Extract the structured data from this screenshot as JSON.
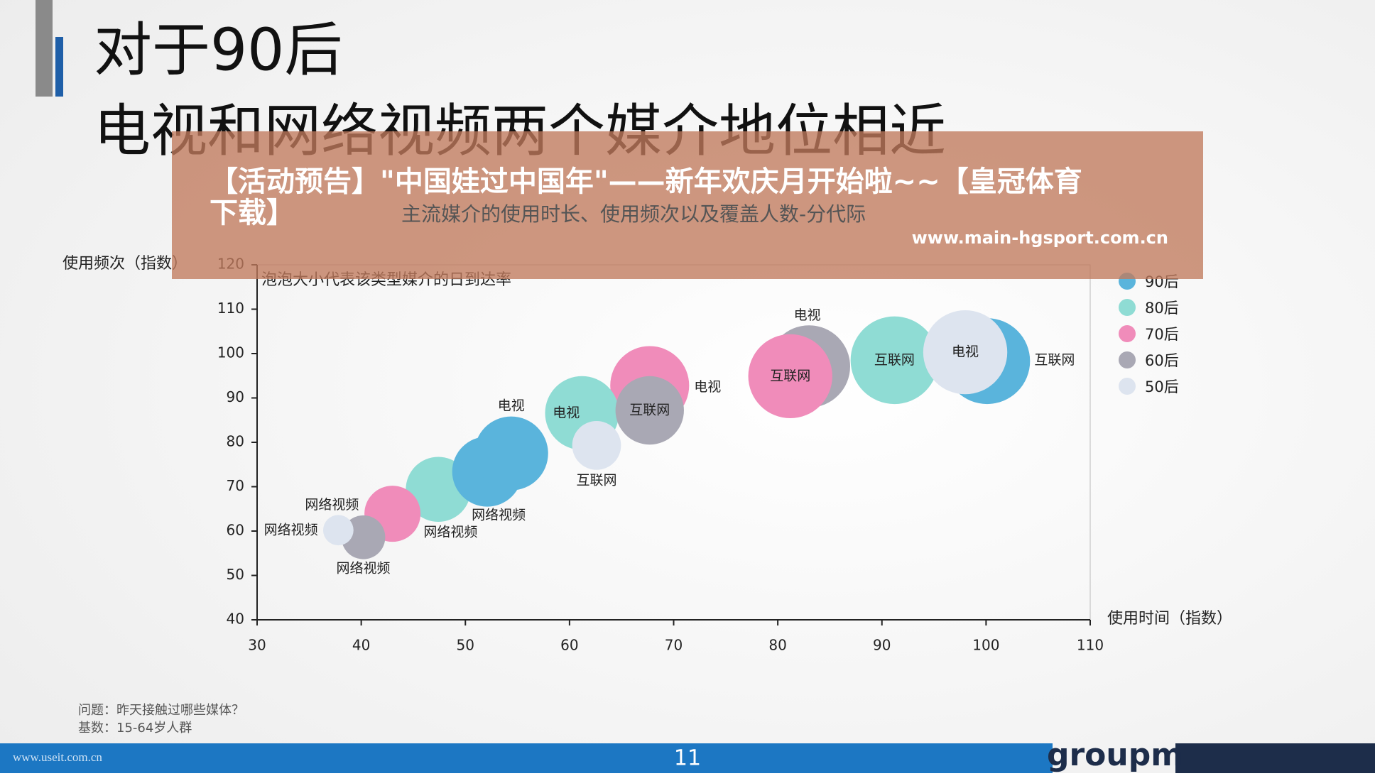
{
  "slide": {
    "title_line1": "对于90后",
    "title_line2": "电视和网络视频两个媒介地位相近",
    "banner": "【活动预告】\"中国娃过中国年\"——新年欢庆月开始啦~~【皇冠体育",
    "banner_line2": "下载】",
    "subtitle": "主流媒介的使用时长、使用频次以及覆盖人数-分代际",
    "watermark": "www.main-hgsport.com.cn",
    "question": "问题：昨天接触过哪些媒体？",
    "base": "基数：15-64岁人群",
    "footer_url": "www.useit.com.cn",
    "page_number": "11",
    "logo": "groupm"
  },
  "chart_data": {
    "type": "bubble",
    "note": "泡泡大小代表该类型媒介的日到达率",
    "xlabel": "使用时间（指数）",
    "ylabel": "使用频次（指数）",
    "xlim": [
      30,
      110
    ],
    "xticks": [
      30,
      40,
      50,
      60,
      70,
      80,
      90,
      100,
      110
    ],
    "ylim": [
      40,
      120
    ],
    "yticks": [
      40,
      50,
      60,
      70,
      80,
      90,
      100,
      110,
      120
    ],
    "legend": "right",
    "series": [
      {
        "name": "90后",
        "color": "#5ab4dc",
        "labels": [
          "网络视频",
          "电视",
          "互联网"
        ],
        "x": [
          52.1,
          54.4,
          100.1
        ],
        "values": [
          73.4,
          77.5,
          98.3
        ],
        "sizes": [
          64,
          71,
          96
        ]
      },
      {
        "name": "80后",
        "color": "#8fdcd4",
        "labels": [
          "网络视频",
          "电视",
          "互联网"
        ],
        "x": [
          47.4,
          61.2,
          91.2
        ],
        "values": [
          69.4,
          86.6,
          98.5
        ],
        "sizes": [
          55,
          71,
          100
        ]
      },
      {
        "name": "70后",
        "color": "#f08cba",
        "labels": [
          "网络视频",
          "电视",
          "互联网"
        ],
        "x": [
          43.0,
          67.7,
          81.2
        ],
        "values": [
          63.9,
          92.8,
          94.9
        ],
        "sizes": [
          41,
          81,
          92
        ]
      },
      {
        "name": "60后",
        "color": "#a9a8b4",
        "labels": [
          "网络视频",
          "电视",
          "互联网"
        ],
        "x": [
          40.2,
          83.0,
          67.7
        ],
        "values": [
          58.6,
          97.1,
          87.2
        ],
        "sizes": [
          25,
          88,
          61
        ]
      },
      {
        "name": "50后",
        "color": "#dde4ef",
        "labels": [
          "网络视频",
          "电视",
          "互联网"
        ],
        "x": [
          37.8,
          98.0,
          62.6
        ],
        "values": [
          60.2,
          100.3,
          79.3
        ],
        "sizes": [
          12,
          92,
          31
        ]
      }
    ]
  }
}
